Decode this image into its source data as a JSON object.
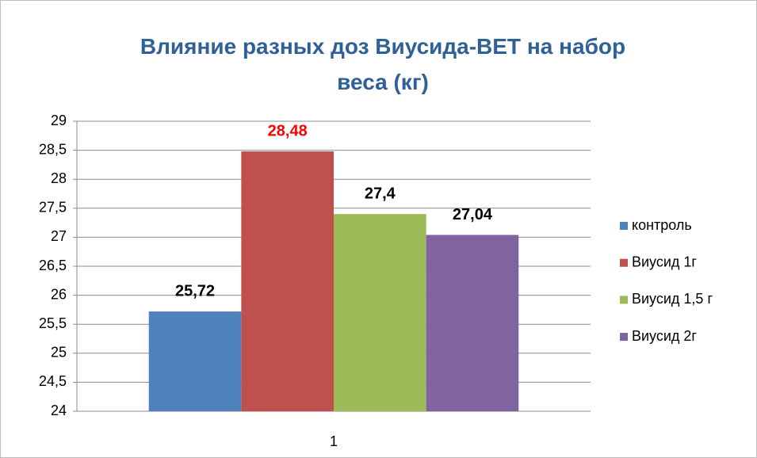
{
  "chart_data": {
    "type": "bar",
    "title": "Влияние разных доз Виусида-ВЕТ на набор веса (кг)",
    "categories": [
      "1"
    ],
    "series": [
      {
        "name": "контроль",
        "color": "#4f81bd",
        "values": [
          25.72
        ],
        "value_labels": [
          "25,72"
        ],
        "label_color": "#000000"
      },
      {
        "name": "Виусид 1г",
        "color": "#c0504d",
        "values": [
          28.48
        ],
        "value_labels": [
          "28,48"
        ],
        "label_color": "#ff0000"
      },
      {
        "name": "Виусид 1,5 г",
        "color": "#9bbb59",
        "values": [
          27.4
        ],
        "value_labels": [
          "27,4"
        ],
        "label_color": "#000000"
      },
      {
        "name": "Виусид 2г",
        "color": "#8064a2",
        "values": [
          27.04
        ],
        "value_labels": [
          "27,04"
        ],
        "label_color": "#000000"
      }
    ],
    "ylim": [
      24,
      29
    ],
    "yticks": [
      24,
      {
        "value": 24.5,
        "label": "24,5"
      },
      25,
      {
        "value": 25.5,
        "label": "25,5"
      },
      26,
      {
        "value": 26.5,
        "label": "26,5"
      },
      27,
      {
        "value": 27.5,
        "label": "27,5"
      },
      28,
      {
        "value": 28.5,
        "label": "28,5"
      },
      29
    ],
    "grid": true,
    "legend": "right"
  }
}
